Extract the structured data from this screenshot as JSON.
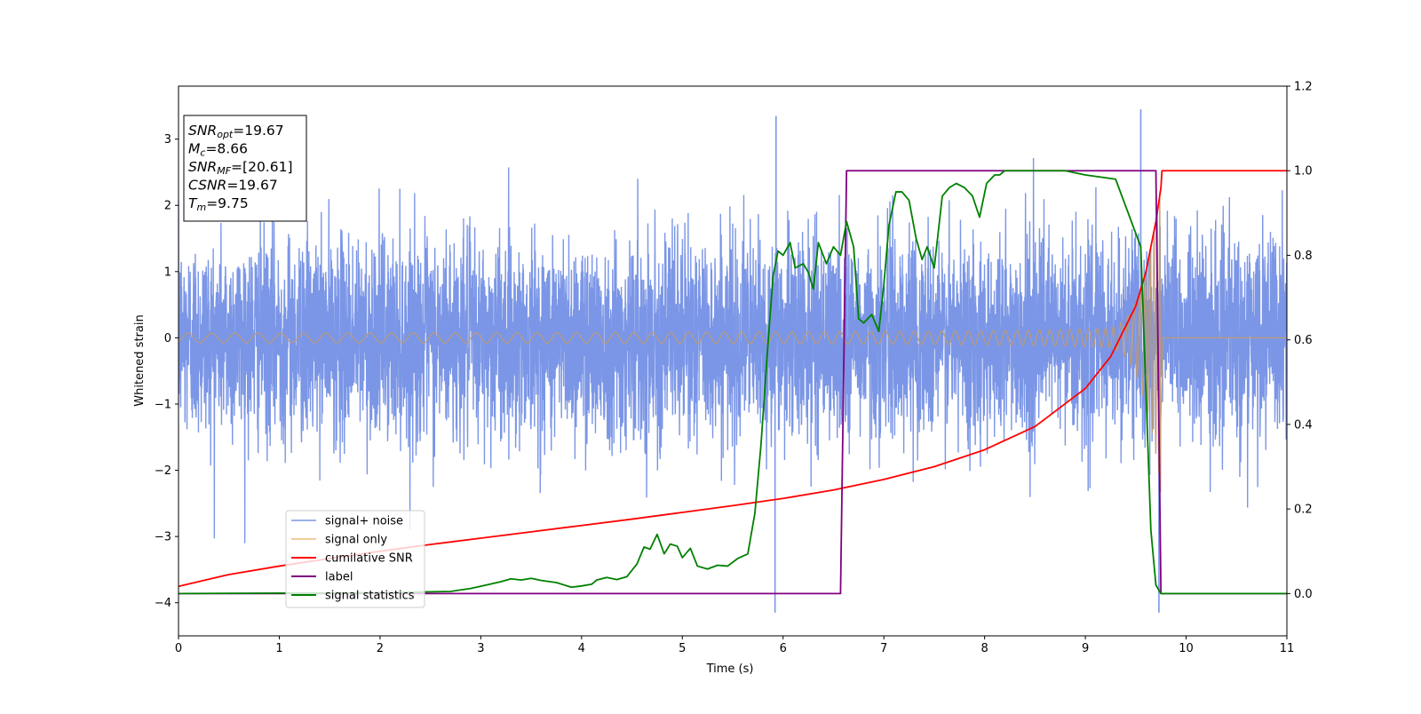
{
  "chart_data": {
    "type": "line",
    "xlabel": "Time (s)",
    "ylabel": "Whitened strain",
    "xlim": [
      0,
      11
    ],
    "ylim_left": [
      -4.5,
      3.8
    ],
    "ylim_right": [
      -0.1,
      1.2
    ],
    "x_ticks": [
      "0",
      "1",
      "2",
      "3",
      "4",
      "5",
      "6",
      "7",
      "8",
      "9",
      "10",
      "11"
    ],
    "y_ticks_left": [
      "−4",
      "−3",
      "−2",
      "−1",
      "0",
      "1",
      "2",
      "3"
    ],
    "y_ticks_right": [
      "0.0",
      "0.2",
      "0.4",
      "0.6",
      "0.8",
      "1.0",
      "1.2"
    ],
    "legend_position": "lower-left",
    "colors": {
      "signal_noise": "#7b96e6",
      "signal_only": "#e8a040",
      "signal_only_dense": "#c09a70",
      "cumulative_snr": "#ff0000",
      "label": "#800080",
      "signal_statistics": "#008000"
    },
    "series": [
      {
        "name": "signal+ noise",
        "axis": "left",
        "description_type": "noise",
        "x_range": [
          0,
          11
        ],
        "amplitude_std": 0.75,
        "extremes": [
          {
            "x": 5.93,
            "y": 3.35
          },
          {
            "x": 5.92,
            "y": -4.15
          },
          {
            "x": 9.55,
            "y": 3.45
          },
          {
            "x": 9.73,
            "y": -4.15
          }
        ]
      },
      {
        "name": "signal only",
        "axis": "left",
        "merger_time": 9.75,
        "envelope_start": 0.07,
        "envelope_end": 2.55
      },
      {
        "name": "cumilative SNR",
        "axis": "right",
        "x": [
          0,
          0.5,
          1,
          1.5,
          2,
          2.5,
          3,
          3.5,
          4,
          4.5,
          5,
          5.5,
          6,
          6.5,
          7,
          7.5,
          8,
          8.5,
          9,
          9.25,
          9.5,
          9.6,
          9.7,
          9.75,
          9.76,
          11
        ],
        "y": [
          0.017,
          0.045,
          0.065,
          0.083,
          0.1,
          0.116,
          0.131,
          0.146,
          0.161,
          0.176,
          0.192,
          0.208,
          0.225,
          0.245,
          0.27,
          0.3,
          0.34,
          0.395,
          0.485,
          0.56,
          0.68,
          0.76,
          0.88,
          0.96,
          1.0,
          1.0
        ]
      },
      {
        "name": "label",
        "axis": "right",
        "x": [
          0,
          6.57,
          6.63,
          9.7,
          9.75,
          11
        ],
        "y": [
          0,
          0,
          1,
          1,
          0,
          0
        ]
      },
      {
        "name": "signal statistics",
        "axis": "right",
        "x": [
          0,
          1,
          2,
          2.7,
          2.9,
          3.05,
          3.2,
          3.3,
          3.4,
          3.5,
          3.6,
          3.75,
          3.9,
          4.0,
          4.1,
          4.15,
          4.25,
          4.35,
          4.45,
          4.55,
          4.62,
          4.68,
          4.75,
          4.82,
          4.88,
          4.95,
          5.0,
          5.08,
          5.15,
          5.25,
          5.35,
          5.45,
          5.55,
          5.65,
          5.72,
          5.78,
          5.85,
          5.9,
          5.95,
          6.0,
          6.07,
          6.12,
          6.2,
          6.25,
          6.3,
          6.35,
          6.43,
          6.5,
          6.57,
          6.63,
          6.7,
          6.75,
          6.8,
          6.88,
          6.95,
          7.0,
          7.05,
          7.12,
          7.18,
          7.25,
          7.32,
          7.38,
          7.43,
          7.5,
          7.58,
          7.65,
          7.72,
          7.8,
          7.88,
          7.95,
          8.02,
          8.1,
          8.15,
          8.2,
          8.25,
          8.3,
          8.45,
          8.6,
          8.8,
          9.0,
          9.3,
          9.55,
          9.65,
          9.7,
          9.75,
          9.8,
          9.9,
          10.2,
          11
        ],
        "y": [
          0.0,
          0.001,
          0.002,
          0.005,
          0.012,
          0.02,
          0.028,
          0.035,
          0.032,
          0.036,
          0.031,
          0.026,
          0.015,
          0.018,
          0.022,
          0.032,
          0.038,
          0.033,
          0.04,
          0.07,
          0.11,
          0.105,
          0.14,
          0.094,
          0.117,
          0.112,
          0.085,
          0.107,
          0.065,
          0.058,
          0.067,
          0.065,
          0.083,
          0.094,
          0.19,
          0.35,
          0.59,
          0.75,
          0.81,
          0.8,
          0.83,
          0.77,
          0.78,
          0.76,
          0.72,
          0.83,
          0.78,
          0.82,
          0.8,
          0.88,
          0.82,
          0.65,
          0.64,
          0.66,
          0.62,
          0.73,
          0.87,
          0.95,
          0.95,
          0.93,
          0.84,
          0.79,
          0.82,
          0.77,
          0.94,
          0.96,
          0.97,
          0.96,
          0.94,
          0.89,
          0.97,
          0.99,
          0.99,
          1.0,
          1.0,
          1.0,
          1.0,
          1.0,
          1.0,
          0.99,
          0.98,
          0.82,
          0.15,
          0.02,
          0.0,
          0.0,
          0.0,
          0.0,
          0.0
        ]
      }
    ],
    "info_box": [
      {
        "main": "SNR",
        "sub": "opt",
        "value": "=19.67"
      },
      {
        "main": "M",
        "sub": "c",
        "value": "=8.66"
      },
      {
        "main": "SNR",
        "sub": "MF",
        "value": "=[20.61]"
      },
      {
        "main": "CSNR",
        "sub": "",
        "value": "=19.67"
      },
      {
        "main": "T",
        "sub": "m",
        "value": "=9.75"
      }
    ]
  }
}
